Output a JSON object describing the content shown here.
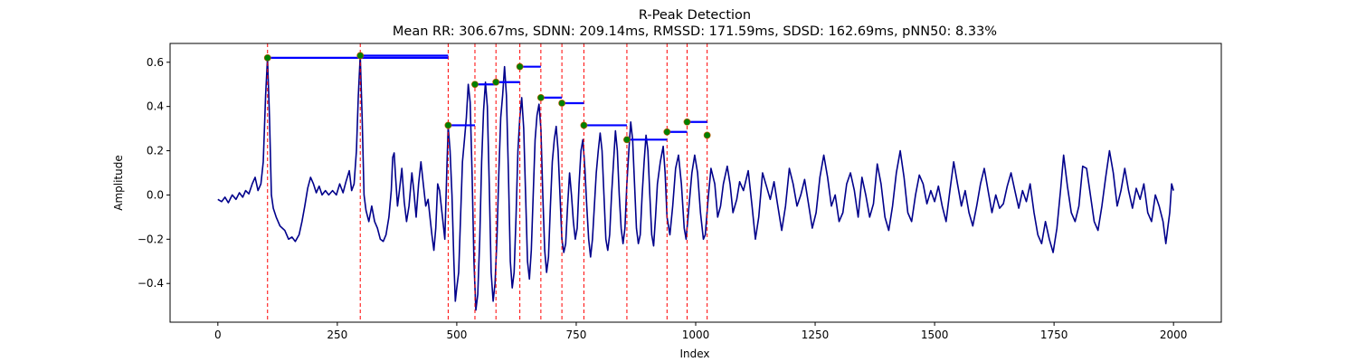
{
  "chart_data": {
    "type": "line",
    "title": "R-Peak Detection",
    "subtitle": "Mean RR: 306.67ms, SDNN: 209.14ms, RMSSD: 171.59ms, SDSD: 162.69ms, pNN50: 8.33%",
    "xlabel": "Index",
    "ylabel": "Amplitude",
    "xlim": [
      -100,
      2100
    ],
    "ylim": [
      -0.575,
      0.685
    ],
    "x_ticks": [
      0,
      250,
      500,
      750,
      1000,
      1250,
      1500,
      1750,
      2000
    ],
    "y_ticks": [
      -0.4,
      -0.2,
      0.0,
      0.2,
      0.4,
      0.6
    ],
    "grid": false,
    "colors": {
      "signal": "#00008b",
      "peak_marker": "#008000",
      "peak_line": "#ff0000",
      "rr_segment": "#0000ff"
    },
    "signal_keypoints": [
      [
        0,
        -0.02
      ],
      [
        8,
        -0.03
      ],
      [
        15,
        -0.01
      ],
      [
        22,
        -0.035
      ],
      [
        30,
        0.0
      ],
      [
        38,
        -0.02
      ],
      [
        45,
        0.01
      ],
      [
        52,
        -0.01
      ],
      [
        58,
        0.02
      ],
      [
        65,
        0.005
      ],
      [
        72,
        0.05
      ],
      [
        78,
        0.08
      ],
      [
        84,
        0.02
      ],
      [
        90,
        0.05
      ],
      [
        95,
        0.15
      ],
      [
        100,
        0.45
      ],
      [
        104,
        0.62
      ],
      [
        108,
        0.35
      ],
      [
        112,
        0.0
      ],
      [
        116,
        -0.06
      ],
      [
        122,
        -0.1
      ],
      [
        130,
        -0.14
      ],
      [
        140,
        -0.16
      ],
      [
        148,
        -0.2
      ],
      [
        155,
        -0.19
      ],
      [
        162,
        -0.21
      ],
      [
        170,
        -0.18
      ],
      [
        176,
        -0.12
      ],
      [
        182,
        -0.05
      ],
      [
        188,
        0.03
      ],
      [
        194,
        0.08
      ],
      [
        200,
        0.05
      ],
      [
        206,
        0.01
      ],
      [
        212,
        0.04
      ],
      [
        218,
        0.0
      ],
      [
        225,
        0.02
      ],
      [
        232,
        0.0
      ],
      [
        240,
        0.02
      ],
      [
        248,
        0.0
      ],
      [
        255,
        0.05
      ],
      [
        262,
        0.01
      ],
      [
        268,
        0.06
      ],
      [
        275,
        0.11
      ],
      [
        280,
        0.02
      ],
      [
        285,
        0.05
      ],
      [
        290,
        0.2
      ],
      [
        294,
        0.45
      ],
      [
        298,
        0.63
      ],
      [
        302,
        0.35
      ],
      [
        306,
        0.0
      ],
      [
        310,
        -0.07
      ],
      [
        316,
        -0.12
      ],
      [
        322,
        -0.05
      ],
      [
        328,
        -0.12
      ],
      [
        334,
        -0.15
      ],
      [
        340,
        -0.2
      ],
      [
        346,
        -0.21
      ],
      [
        352,
        -0.18
      ],
      [
        358,
        -0.1
      ],
      [
        363,
        0.02
      ],
      [
        366,
        0.17
      ],
      [
        369,
        0.19
      ],
      [
        372,
        0.08
      ],
      [
        376,
        -0.05
      ],
      [
        380,
        0.02
      ],
      [
        385,
        0.12
      ],
      [
        390,
        -0.03
      ],
      [
        395,
        -0.12
      ],
      [
        400,
        -0.05
      ],
      [
        406,
        0.1
      ],
      [
        410,
        0.02
      ],
      [
        415,
        -0.1
      ],
      [
        420,
        0.05
      ],
      [
        425,
        0.15
      ],
      [
        430,
        0.05
      ],
      [
        435,
        -0.05
      ],
      [
        440,
        -0.02
      ],
      [
        448,
        -0.18
      ],
      [
        452,
        -0.25
      ],
      [
        456,
        -0.15
      ],
      [
        460,
        0.05
      ],
      [
        464,
        0.02
      ],
      [
        470,
        -0.1
      ],
      [
        475,
        -0.2
      ],
      [
        479,
        0.1
      ],
      [
        482,
        0.31
      ],
      [
        486,
        0.2
      ],
      [
        490,
        0.0
      ],
      [
        494,
        -0.3
      ],
      [
        497,
        -0.48
      ],
      [
        500,
        -0.42
      ],
      [
        504,
        -0.35
      ],
      [
        508,
        -0.1
      ],
      [
        512,
        0.15
      ],
      [
        516,
        0.25
      ],
      [
        520,
        0.35
      ],
      [
        524,
        0.5
      ],
      [
        528,
        0.42
      ],
      [
        532,
        0.1
      ],
      [
        536,
        -0.3
      ],
      [
        540,
        -0.52
      ],
      [
        544,
        -0.45
      ],
      [
        548,
        -0.2
      ],
      [
        552,
        0.15
      ],
      [
        556,
        0.38
      ],
      [
        560,
        0.51
      ],
      [
        564,
        0.4
      ],
      [
        568,
        0.05
      ],
      [
        572,
        -0.35
      ],
      [
        576,
        -0.48
      ],
      [
        580,
        -0.4
      ],
      [
        584,
        -0.2
      ],
      [
        588,
        0.1
      ],
      [
        592,
        0.35
      ],
      [
        596,
        0.45
      ],
      [
        600,
        0.58
      ],
      [
        604,
        0.45
      ],
      [
        608,
        0.1
      ],
      [
        612,
        -0.3
      ],
      [
        616,
        -0.42
      ],
      [
        620,
        -0.35
      ],
      [
        624,
        -0.1
      ],
      [
        628,
        0.2
      ],
      [
        632,
        0.35
      ],
      [
        636,
        0.44
      ],
      [
        640,
        0.3
      ],
      [
        644,
        0.0
      ],
      [
        648,
        -0.3
      ],
      [
        652,
        -0.38
      ],
      [
        656,
        -0.25
      ],
      [
        660,
        0.0
      ],
      [
        664,
        0.25
      ],
      [
        668,
        0.36
      ],
      [
        672,
        0.41
      ],
      [
        676,
        0.3
      ],
      [
        680,
        0.0
      ],
      [
        684,
        -0.25
      ],
      [
        688,
        -0.35
      ],
      [
        692,
        -0.28
      ],
      [
        696,
        -0.05
      ],
      [
        700,
        0.15
      ],
      [
        704,
        0.25
      ],
      [
        708,
        0.31
      ],
      [
        712,
        0.2
      ],
      [
        716,
        0.0
      ],
      [
        720,
        -0.2
      ],
      [
        724,
        -0.26
      ],
      [
        728,
        -0.22
      ],
      [
        732,
        -0.05
      ],
      [
        736,
        0.1
      ],
      [
        740,
        0.0
      ],
      [
        744,
        -0.12
      ],
      [
        748,
        -0.2
      ],
      [
        752,
        -0.15
      ],
      [
        756,
        0.05
      ],
      [
        760,
        0.2
      ],
      [
        764,
        0.25
      ],
      [
        768,
        0.12
      ],
      [
        772,
        -0.05
      ],
      [
        776,
        -0.2
      ],
      [
        780,
        -0.28
      ],
      [
        784,
        -0.2
      ],
      [
        788,
        -0.05
      ],
      [
        792,
        0.1
      ],
      [
        796,
        0.2
      ],
      [
        800,
        0.28
      ],
      [
        804,
        0.2
      ],
      [
        808,
        0.0
      ],
      [
        812,
        -0.2
      ],
      [
        816,
        -0.25
      ],
      [
        820,
        -0.18
      ],
      [
        824,
        0.0
      ],
      [
        828,
        0.15
      ],
      [
        832,
        0.29
      ],
      [
        836,
        0.2
      ],
      [
        840,
        0.0
      ],
      [
        844,
        -0.15
      ],
      [
        848,
        -0.22
      ],
      [
        852,
        -0.15
      ],
      [
        856,
        0.05
      ],
      [
        860,
        0.2
      ],
      [
        864,
        0.33
      ],
      [
        868,
        0.25
      ],
      [
        872,
        0.05
      ],
      [
        876,
        -0.15
      ],
      [
        880,
        -0.22
      ],
      [
        884,
        -0.18
      ],
      [
        888,
        0.0
      ],
      [
        892,
        0.15
      ],
      [
        896,
        0.27
      ],
      [
        900,
        0.2
      ],
      [
        904,
        0.0
      ],
      [
        908,
        -0.18
      ],
      [
        912,
        -0.23
      ],
      [
        916,
        -0.1
      ],
      [
        920,
        0.05
      ],
      [
        926,
        0.15
      ],
      [
        932,
        0.22
      ],
      [
        936,
        0.1
      ],
      [
        940,
        -0.1
      ],
      [
        946,
        -0.18
      ],
      [
        952,
        -0.05
      ],
      [
        958,
        0.12
      ],
      [
        964,
        0.18
      ],
      [
        970,
        0.05
      ],
      [
        976,
        -0.15
      ],
      [
        980,
        -0.2
      ],
      [
        986,
        -0.05
      ],
      [
        992,
        0.1
      ],
      [
        998,
        0.18
      ],
      [
        1004,
        0.1
      ],
      [
        1010,
        -0.08
      ],
      [
        1016,
        -0.2
      ],
      [
        1020,
        -0.18
      ],
      [
        1026,
        -0.02
      ],
      [
        1032,
        0.12
      ],
      [
        1040,
        0.05
      ],
      [
        1046,
        -0.1
      ],
      [
        1052,
        -0.05
      ],
      [
        1058,
        0.05
      ],
      [
        1066,
        0.13
      ],
      [
        1072,
        0.05
      ],
      [
        1078,
        -0.08
      ],
      [
        1086,
        -0.02
      ],
      [
        1092,
        0.06
      ],
      [
        1100,
        0.02
      ],
      [
        1110,
        0.11
      ],
      [
        1118,
        -0.05
      ],
      [
        1125,
        -0.2
      ],
      [
        1132,
        -0.1
      ],
      [
        1140,
        0.1
      ],
      [
        1148,
        0.04
      ],
      [
        1156,
        -0.02
      ],
      [
        1164,
        0.06
      ],
      [
        1172,
        -0.05
      ],
      [
        1180,
        -0.16
      ],
      [
        1188,
        -0.05
      ],
      [
        1196,
        0.12
      ],
      [
        1204,
        0.05
      ],
      [
        1212,
        -0.05
      ],
      [
        1220,
        0.0
      ],
      [
        1228,
        0.07
      ],
      [
        1236,
        -0.04
      ],
      [
        1244,
        -0.15
      ],
      [
        1252,
        -0.08
      ],
      [
        1260,
        0.08
      ],
      [
        1268,
        0.18
      ],
      [
        1276,
        0.08
      ],
      [
        1284,
        -0.05
      ],
      [
        1292,
        0.0
      ],
      [
        1300,
        -0.12
      ],
      [
        1308,
        -0.08
      ],
      [
        1316,
        0.05
      ],
      [
        1324,
        0.1
      ],
      [
        1332,
        0.02
      ],
      [
        1340,
        -0.1
      ],
      [
        1348,
        0.08
      ],
      [
        1356,
        0.0
      ],
      [
        1364,
        -0.1
      ],
      [
        1372,
        -0.04
      ],
      [
        1380,
        0.14
      ],
      [
        1388,
        0.05
      ],
      [
        1396,
        -0.1
      ],
      [
        1404,
        -0.16
      ],
      [
        1412,
        -0.05
      ],
      [
        1420,
        0.1
      ],
      [
        1428,
        0.2
      ],
      [
        1436,
        0.08
      ],
      [
        1444,
        -0.08
      ],
      [
        1452,
        -0.12
      ],
      [
        1460,
        0.0
      ],
      [
        1468,
        0.09
      ],
      [
        1476,
        0.05
      ],
      [
        1484,
        -0.04
      ],
      [
        1492,
        0.02
      ],
      [
        1500,
        -0.03
      ],
      [
        1508,
        0.04
      ],
      [
        1516,
        -0.05
      ],
      [
        1524,
        -0.12
      ],
      [
        1532,
        0.02
      ],
      [
        1540,
        0.15
      ],
      [
        1548,
        0.05
      ],
      [
        1556,
        -0.05
      ],
      [
        1564,
        0.02
      ],
      [
        1572,
        -0.08
      ],
      [
        1580,
        -0.14
      ],
      [
        1588,
        -0.05
      ],
      [
        1596,
        0.05
      ],
      [
        1604,
        0.12
      ],
      [
        1612,
        0.02
      ],
      [
        1620,
        -0.08
      ],
      [
        1628,
        0.0
      ],
      [
        1636,
        -0.06
      ],
      [
        1644,
        -0.04
      ],
      [
        1652,
        0.04
      ],
      [
        1660,
        0.1
      ],
      [
        1668,
        0.02
      ],
      [
        1676,
        -0.06
      ],
      [
        1684,
        0.02
      ],
      [
        1692,
        -0.03
      ],
      [
        1700,
        0.05
      ],
      [
        1708,
        -0.08
      ],
      [
        1716,
        -0.18
      ],
      [
        1724,
        -0.22
      ],
      [
        1732,
        -0.12
      ],
      [
        1740,
        -0.2
      ],
      [
        1748,
        -0.26
      ],
      [
        1756,
        -0.15
      ],
      [
        1764,
        0.03
      ],
      [
        1770,
        0.18
      ],
      [
        1778,
        0.04
      ],
      [
        1786,
        -0.08
      ],
      [
        1794,
        -0.12
      ],
      [
        1802,
        -0.05
      ],
      [
        1810,
        0.13
      ],
      [
        1818,
        0.12
      ],
      [
        1826,
        0.0
      ],
      [
        1834,
        -0.12
      ],
      [
        1842,
        -0.16
      ],
      [
        1850,
        -0.05
      ],
      [
        1858,
        0.08
      ],
      [
        1866,
        0.2
      ],
      [
        1874,
        0.1
      ],
      [
        1882,
        -0.05
      ],
      [
        1890,
        0.02
      ],
      [
        1898,
        0.12
      ],
      [
        1906,
        0.02
      ],
      [
        1914,
        -0.06
      ],
      [
        1922,
        0.03
      ],
      [
        1930,
        -0.02
      ],
      [
        1938,
        0.05
      ],
      [
        1946,
        -0.08
      ],
      [
        1954,
        -0.12
      ],
      [
        1962,
        0.0
      ],
      [
        1970,
        -0.05
      ],
      [
        1978,
        -0.12
      ],
      [
        1984,
        -0.22
      ],
      [
        1988,
        -0.15
      ],
      [
        1992,
        -0.08
      ],
      [
        1996,
        0.05
      ],
      [
        2000,
        0.02
      ]
    ],
    "r_peaks": [
      {
        "x": 104,
        "y": 0.62
      },
      {
        "x": 298,
        "y": 0.63
      },
      {
        "x": 482,
        "y": 0.315
      },
      {
        "x": 538,
        "y": 0.5
      },
      {
        "x": 582,
        "y": 0.51
      },
      {
        "x": 632,
        "y": 0.58
      },
      {
        "x": 676,
        "y": 0.44
      },
      {
        "x": 720,
        "y": 0.415
      },
      {
        "x": 766,
        "y": 0.315
      },
      {
        "x": 856,
        "y": 0.25
      },
      {
        "x": 940,
        "y": 0.285
      },
      {
        "x": 982,
        "y": 0.33
      },
      {
        "x": 1024,
        "y": 0.27
      }
    ],
    "rr_segments": [
      {
        "x0": 104,
        "x1": 482,
        "y": 0.62
      },
      {
        "x0": 298,
        "x1": 482,
        "y": 0.63
      },
      {
        "x0": 482,
        "x1": 538,
        "y": 0.315
      },
      {
        "x0": 538,
        "x1": 582,
        "y": 0.5
      },
      {
        "x0": 582,
        "x1": 632,
        "y": 0.51
      },
      {
        "x0": 632,
        "x1": 676,
        "y": 0.58
      },
      {
        "x0": 676,
        "x1": 720,
        "y": 0.44
      },
      {
        "x0": 720,
        "x1": 766,
        "y": 0.415
      },
      {
        "x0": 766,
        "x1": 856,
        "y": 0.315
      },
      {
        "x0": 856,
        "x1": 940,
        "y": 0.25
      },
      {
        "x0": 940,
        "x1": 982,
        "y": 0.285
      },
      {
        "x0": 982,
        "x1": 1024,
        "y": 0.33
      }
    ]
  }
}
